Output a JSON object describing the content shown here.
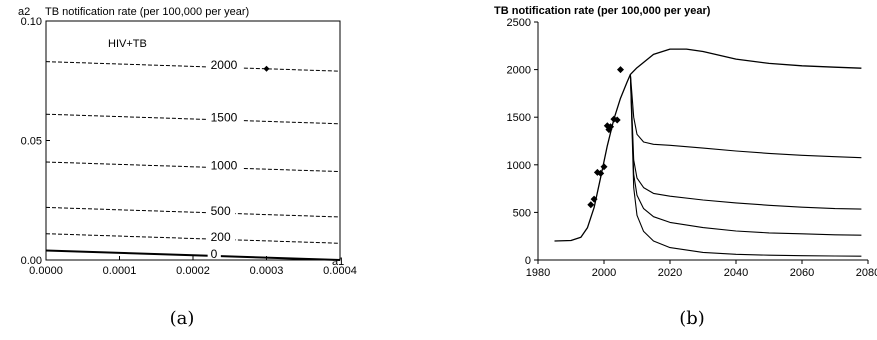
{
  "chart_data": [
    {
      "type": "line",
      "panel_label": "(a)",
      "title": "TB notification rate (per 100,000 per year)",
      "xlabel": "a1",
      "ylabel": "a2",
      "annotation": "HIV+TB",
      "xlim": [
        0,
        0.0004
      ],
      "ylim": [
        0,
        0.1
      ],
      "xticks": [
        "0.0000",
        "0.0001",
        "0.0002",
        "0.0003",
        "0.0004"
      ],
      "yticks": [
        "0.00",
        "0.05",
        "0.10"
      ],
      "contours": [
        {
          "label": "2000",
          "x": [
            0,
            0.0004
          ],
          "y": [
            0.083,
            0.079
          ],
          "style": "dashed"
        },
        {
          "label": "1500",
          "x": [
            0,
            0.0004
          ],
          "y": [
            0.061,
            0.057
          ],
          "style": "dashed"
        },
        {
          "label": "1000",
          "x": [
            0,
            0.0004
          ],
          "y": [
            0.041,
            0.037
          ],
          "style": "dashed"
        },
        {
          "label": "500",
          "x": [
            0,
            0.0004
          ],
          "y": [
            0.022,
            0.018
          ],
          "style": "dashed"
        },
        {
          "label": "200",
          "x": [
            0,
            0.0004
          ],
          "y": [
            0.011,
            0.007
          ],
          "style": "dashed"
        },
        {
          "label": "0",
          "x": [
            0,
            0.0004
          ],
          "y": [
            0.004,
            0.0
          ],
          "style": "solid"
        }
      ],
      "points": [
        {
          "x": 0.0003,
          "y": 0.08
        }
      ]
    },
    {
      "type": "line",
      "panel_label": "(b)",
      "title": "TB notification rate (per 100,000 per year)",
      "xlim": [
        1980,
        2080
      ],
      "ylim": [
        0,
        2500
      ],
      "xticks": [
        "1980",
        "2000",
        "2020",
        "2040",
        "2060",
        "2080"
      ],
      "yticks": [
        "0",
        "500",
        "1000",
        "1500",
        "2000",
        "2500"
      ],
      "series": [
        {
          "x": [
            1985,
            1990,
            1993,
            1995,
            1997,
            1999,
            2001,
            2003,
            2005,
            2007,
            2008,
            2010,
            2015,
            2020,
            2025,
            2030,
            2040,
            2050,
            2060,
            2070,
            2078
          ],
          "y": [
            200,
            205,
            240,
            340,
            550,
            870,
            1200,
            1480,
            1700,
            1870,
            1950,
            2020,
            2160,
            2215,
            2215,
            2190,
            2110,
            2065,
            2040,
            2025,
            2015
          ]
        },
        {
          "x": [
            2008,
            2009,
            2010,
            2012,
            2015,
            2020,
            2030,
            2040,
            2050,
            2060,
            2070,
            2078
          ],
          "y": [
            1950,
            1500,
            1320,
            1240,
            1215,
            1205,
            1175,
            1145,
            1120,
            1100,
            1085,
            1075
          ]
        },
        {
          "x": [
            2008,
            2009,
            2010,
            2012,
            2015,
            2020,
            2030,
            2040,
            2050,
            2060,
            2070,
            2078
          ],
          "y": [
            1950,
            1050,
            860,
            760,
            700,
            670,
            630,
            600,
            575,
            555,
            540,
            535
          ]
        },
        {
          "x": [
            2008,
            2009,
            2010,
            2012,
            2015,
            2020,
            2030,
            2040,
            2050,
            2060,
            2070,
            2078
          ],
          "y": [
            1950,
            900,
            680,
            540,
            455,
            395,
            340,
            305,
            285,
            275,
            265,
            260
          ]
        },
        {
          "x": [
            2008,
            2009,
            2010,
            2012,
            2015,
            2020,
            2030,
            2040,
            2050,
            2060,
            2070,
            2078
          ],
          "y": [
            1950,
            760,
            470,
            300,
            200,
            130,
            80,
            60,
            50,
            45,
            42,
            40
          ]
        }
      ],
      "points": [
        {
          "x": 1996,
          "y": 580
        },
        {
          "x": 1997,
          "y": 640
        },
        {
          "x": 1998,
          "y": 920
        },
        {
          "x": 1999,
          "y": 910
        },
        {
          "x": 2000,
          "y": 980
        },
        {
          "x": 2001,
          "y": 1410
        },
        {
          "x": 2001.5,
          "y": 1370
        },
        {
          "x": 2002,
          "y": 1400
        },
        {
          "x": 2003,
          "y": 1480
        },
        {
          "x": 2004,
          "y": 1470
        },
        {
          "x": 2005,
          "y": 2000
        }
      ]
    }
  ]
}
